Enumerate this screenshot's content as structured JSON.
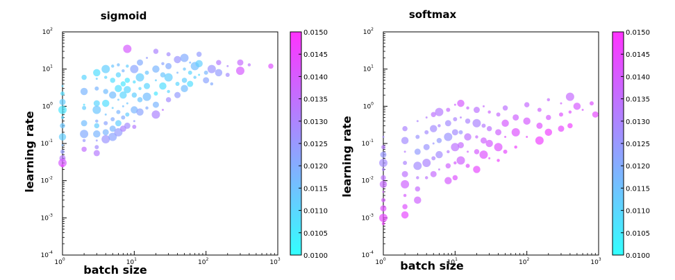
{
  "chart_data": [
    {
      "type": "scatter",
      "title": "sigmoid",
      "xlabel": "batch size",
      "ylabel": "learning rate",
      "xscale": "log",
      "yscale": "log",
      "xlim": [
        1,
        1000
      ],
      "ylim": [
        0.0001,
        100
      ],
      "x_ticks": [
        {
          "base": "10",
          "exp": "0"
        },
        {
          "base": "10",
          "exp": "1"
        },
        {
          "base": "10",
          "exp": "2"
        },
        {
          "base": "10",
          "exp": "3"
        }
      ],
      "y_ticks": [
        {
          "base": "10",
          "exp": "-4"
        },
        {
          "base": "10",
          "exp": "-3"
        },
        {
          "base": "10",
          "exp": "-2"
        },
        {
          "base": "10",
          "exp": "-1"
        },
        {
          "base": "10",
          "exp": "0"
        },
        {
          "base": "10",
          "exp": "1"
        },
        {
          "base": "10",
          "exp": "2"
        }
      ],
      "colorbar": {
        "min": 0.01,
        "max": 0.015,
        "low_color": "#33ffff",
        "high_color": "#ff33ff",
        "ticks": [
          "0.0100",
          "0.0105",
          "0.0110",
          "0.0115",
          "0.0120",
          "0.0125",
          "0.0130",
          "0.0135",
          "0.0140",
          "0.0145",
          "0.0150"
        ]
      },
      "points": [
        [
          1,
          3.5,
          0.011
        ],
        [
          1,
          2.2,
          0.0108
        ],
        [
          1,
          1.3,
          0.0112
        ],
        [
          1,
          0.8,
          0.0106
        ],
        [
          1,
          0.5,
          0.011
        ],
        [
          1,
          0.3,
          0.0114
        ],
        [
          1,
          0.15,
          0.0112
        ],
        [
          1,
          0.09,
          0.0118
        ],
        [
          1,
          0.06,
          0.0124
        ],
        [
          1,
          0.04,
          0.0132
        ],
        [
          1,
          0.03,
          0.014
        ],
        [
          1,
          0.025,
          0.0145
        ],
        [
          2,
          6,
          0.011
        ],
        [
          2,
          2.5,
          0.0118
        ],
        [
          2,
          1.1,
          0.0108
        ],
        [
          2,
          0.9,
          0.0112
        ],
        [
          2,
          0.35,
          0.0116
        ],
        [
          2,
          0.18,
          0.012
        ],
        [
          2,
          0.12,
          0.0125
        ],
        [
          2,
          0.07,
          0.0135
        ],
        [
          3,
          8,
          0.0108
        ],
        [
          3,
          5.5,
          0.0112
        ],
        [
          3,
          3,
          0.0118
        ],
        [
          3,
          1.2,
          0.011
        ],
        [
          3,
          0.8,
          0.0114
        ],
        [
          3,
          0.4,
          0.012
        ],
        [
          3,
          0.3,
          0.0112
        ],
        [
          3,
          0.18,
          0.0118
        ],
        [
          3,
          0.12,
          0.0125
        ],
        [
          3,
          0.08,
          0.0128
        ],
        [
          3,
          0.055,
          0.0132
        ],
        [
          4,
          10,
          0.0112
        ],
        [
          4,
          6,
          0.011
        ],
        [
          4,
          2.5,
          0.0116
        ],
        [
          4,
          1.2,
          0.0108
        ],
        [
          4,
          0.6,
          0.0115
        ],
        [
          4,
          0.35,
          0.0122
        ],
        [
          4,
          0.2,
          0.0118
        ],
        [
          4,
          0.13,
          0.0126
        ],
        [
          5,
          12,
          0.0114
        ],
        [
          5,
          5,
          0.0108
        ],
        [
          5,
          2,
          0.0116
        ],
        [
          5,
          0.9,
          0.0112
        ],
        [
          5,
          0.45,
          0.012
        ],
        [
          5,
          0.25,
          0.0118
        ],
        [
          5,
          0.15,
          0.0122
        ],
        [
          6,
          13,
          0.0116
        ],
        [
          6,
          7,
          0.011
        ],
        [
          6,
          3,
          0.0108
        ],
        [
          6,
          1.5,
          0.0114
        ],
        [
          6,
          0.7,
          0.0118
        ],
        [
          6,
          0.35,
          0.0112
        ],
        [
          6,
          0.2,
          0.0124
        ],
        [
          7,
          9,
          0.0118
        ],
        [
          7,
          4,
          0.0106
        ],
        [
          7,
          2,
          0.011
        ],
        [
          7,
          1,
          0.0116
        ],
        [
          7,
          0.5,
          0.012
        ],
        [
          7,
          0.25,
          0.013
        ],
        [
          8,
          35,
          0.014
        ],
        [
          8,
          12,
          0.0112
        ],
        [
          8,
          5,
          0.0106
        ],
        [
          8,
          2.8,
          0.011
        ],
        [
          8,
          1.2,
          0.0114
        ],
        [
          8,
          0.6,
          0.0112
        ],
        [
          8,
          0.3,
          0.0128
        ],
        [
          10,
          10,
          0.0122
        ],
        [
          10,
          4.5,
          0.0108
        ],
        [
          10,
          2,
          0.0112
        ],
        [
          10,
          0.8,
          0.0118
        ],
        [
          10,
          0.4,
          0.0124
        ],
        [
          10,
          0.28,
          0.0132
        ],
        [
          12,
          15,
          0.012
        ],
        [
          12,
          6,
          0.0112
        ],
        [
          12,
          3,
          0.011
        ],
        [
          12,
          1.5,
          0.0114
        ],
        [
          12,
          0.7,
          0.0122
        ],
        [
          15,
          20,
          0.0124
        ],
        [
          15,
          8,
          0.0114
        ],
        [
          15,
          3.5,
          0.011
        ],
        [
          15,
          1.8,
          0.0116
        ],
        [
          15,
          0.9,
          0.012
        ],
        [
          20,
          30,
          0.013
        ],
        [
          20,
          10,
          0.0118
        ],
        [
          20,
          5,
          0.0112
        ],
        [
          20,
          2.2,
          0.0106
        ],
        [
          20,
          1.1,
          0.0118
        ],
        [
          20,
          0.6,
          0.013
        ],
        [
          25,
          14,
          0.0122
        ],
        [
          25,
          7,
          0.0114
        ],
        [
          25,
          3.5,
          0.0108
        ],
        [
          25,
          0.8,
          0.0134
        ],
        [
          30,
          25,
          0.0128
        ],
        [
          30,
          12,
          0.012
        ],
        [
          30,
          6,
          0.0112
        ],
        [
          30,
          2.5,
          0.011
        ],
        [
          30,
          1.5,
          0.0128
        ],
        [
          40,
          18,
          0.0126
        ],
        [
          40,
          8,
          0.0118
        ],
        [
          40,
          4,
          0.011
        ],
        [
          40,
          2,
          0.0124
        ],
        [
          50,
          20,
          0.012
        ],
        [
          50,
          10,
          0.0114
        ],
        [
          50,
          5,
          0.0112
        ],
        [
          50,
          3,
          0.0116
        ],
        [
          60,
          15,
          0.0118
        ],
        [
          60,
          8,
          0.011
        ],
        [
          60,
          4,
          0.0108
        ],
        [
          70,
          12,
          0.0116
        ],
        [
          70,
          6,
          0.0112
        ],
        [
          80,
          25,
          0.0124
        ],
        [
          80,
          14,
          0.0112
        ],
        [
          80,
          7,
          0.0108
        ],
        [
          100,
          8,
          0.0118
        ],
        [
          100,
          5,
          0.0122
        ],
        [
          120,
          10,
          0.0126
        ],
        [
          120,
          4,
          0.012
        ],
        [
          150,
          15,
          0.0132
        ],
        [
          150,
          8,
          0.0124
        ],
        [
          200,
          12,
          0.013
        ],
        [
          200,
          7,
          0.0128
        ],
        [
          300,
          15,
          0.0136
        ],
        [
          300,
          9,
          0.014
        ],
        [
          400,
          13,
          0.0134
        ],
        [
          800,
          12,
          0.0142
        ]
      ]
    },
    {
      "type": "scatter",
      "title": "softmax",
      "xlabel": "batch size",
      "ylabel": "learning rate",
      "xscale": "log",
      "yscale": "log",
      "xlim": [
        1,
        1000
      ],
      "ylim": [
        0.0001,
        100
      ],
      "x_ticks": [
        {
          "base": "10",
          "exp": "0"
        },
        {
          "base": "10",
          "exp": "1"
        },
        {
          "base": "10",
          "exp": "2"
        },
        {
          "base": "10",
          "exp": "3"
        }
      ],
      "y_ticks": [
        {
          "base": "10",
          "exp": "-4"
        },
        {
          "base": "10",
          "exp": "-3"
        },
        {
          "base": "10",
          "exp": "-2"
        },
        {
          "base": "10",
          "exp": "-1"
        },
        {
          "base": "10",
          "exp": "0"
        },
        {
          "base": "10",
          "exp": "1"
        },
        {
          "base": "10",
          "exp": "2"
        }
      ],
      "colorbar": {
        "min": 0.01,
        "max": 0.015,
        "low_color": "#33ffff",
        "high_color": "#ff33ff",
        "ticks": [
          "0.0100",
          "0.0105",
          "0.0110",
          "0.0115",
          "0.0120",
          "0.0125",
          "0.0130",
          "0.0135",
          "0.0140",
          "0.0145",
          "0.0150"
        ]
      },
      "points": [
        [
          1,
          0.15,
          0.0128
        ],
        [
          1,
          0.08,
          0.0132
        ],
        [
          1,
          0.05,
          0.0125
        ],
        [
          1,
          0.03,
          0.0128
        ],
        [
          1,
          0.02,
          0.013
        ],
        [
          1,
          0.012,
          0.0134
        ],
        [
          1,
          0.008,
          0.0136
        ],
        [
          1,
          0.005,
          0.0138
        ],
        [
          1,
          0.003,
          0.014
        ],
        [
          1,
          0.0018,
          0.0142
        ],
        [
          1,
          0.001,
          0.0144
        ],
        [
          1,
          0.0007,
          0.0146
        ],
        [
          2,
          0.25,
          0.013
        ],
        [
          2,
          0.12,
          0.0128
        ],
        [
          2,
          0.06,
          0.0132
        ],
        [
          2,
          0.03,
          0.013
        ],
        [
          2,
          0.015,
          0.0134
        ],
        [
          2,
          0.008,
          0.0138
        ],
        [
          2,
          0.004,
          0.014
        ],
        [
          2,
          0.002,
          0.0142
        ],
        [
          2,
          0.0012,
          0.0144
        ],
        [
          3,
          0.4,
          0.013
        ],
        [
          3,
          0.15,
          0.0126
        ],
        [
          3,
          0.06,
          0.0124
        ],
        [
          3,
          0.025,
          0.0128
        ],
        [
          3,
          0.012,
          0.0132
        ],
        [
          3,
          0.006,
          0.0136
        ],
        [
          3,
          0.003,
          0.0138
        ],
        [
          4,
          0.5,
          0.0132
        ],
        [
          4,
          0.2,
          0.0128
        ],
        [
          4,
          0.08,
          0.0126
        ],
        [
          4,
          0.03,
          0.013
        ],
        [
          4,
          0.012,
          0.0134
        ],
        [
          5,
          0.6,
          0.0134
        ],
        [
          5,
          0.25,
          0.0128
        ],
        [
          5,
          0.1,
          0.0126
        ],
        [
          5,
          0.04,
          0.013
        ],
        [
          5,
          0.015,
          0.0136
        ],
        [
          6,
          0.7,
          0.0132
        ],
        [
          6,
          0.3,
          0.013
        ],
        [
          6,
          0.12,
          0.0124
        ],
        [
          6,
          0.05,
          0.0128
        ],
        [
          6,
          0.02,
          0.0134
        ],
        [
          8,
          0.8,
          0.0136
        ],
        [
          8,
          0.35,
          0.0128
        ],
        [
          8,
          0.15,
          0.0126
        ],
        [
          8,
          0.06,
          0.0132
        ],
        [
          8,
          0.025,
          0.0138
        ],
        [
          8,
          0.01,
          0.014
        ],
        [
          10,
          1.1,
          0.0138
        ],
        [
          10,
          0.45,
          0.013
        ],
        [
          10,
          0.2,
          0.0128
        ],
        [
          10,
          0.08,
          0.0134
        ],
        [
          10,
          0.03,
          0.014
        ],
        [
          10,
          0.012,
          0.0142
        ],
        [
          12,
          1.2,
          0.014
        ],
        [
          12,
          0.5,
          0.0132
        ],
        [
          12,
          0.2,
          0.0126
        ],
        [
          12,
          0.09,
          0.0136
        ],
        [
          12,
          0.035,
          0.0138
        ],
        [
          15,
          0.9,
          0.0136
        ],
        [
          15,
          0.4,
          0.013
        ],
        [
          15,
          0.15,
          0.0134
        ],
        [
          15,
          0.06,
          0.0138
        ],
        [
          15,
          0.025,
          0.0142
        ],
        [
          20,
          0.8,
          0.0134
        ],
        [
          20,
          0.35,
          0.013
        ],
        [
          20,
          0.15,
          0.0136
        ],
        [
          20,
          0.06,
          0.014
        ],
        [
          20,
          0.02,
          0.0144
        ],
        [
          25,
          1.0,
          0.0136
        ],
        [
          25,
          0.3,
          0.0132
        ],
        [
          25,
          0.12,
          0.0138
        ],
        [
          25,
          0.05,
          0.0142
        ],
        [
          30,
          0.7,
          0.0138
        ],
        [
          30,
          0.25,
          0.0134
        ],
        [
          30,
          0.1,
          0.014
        ],
        [
          30,
          0.04,
          0.0144
        ],
        [
          40,
          0.6,
          0.0136
        ],
        [
          40,
          0.2,
          0.0138
        ],
        [
          40,
          0.08,
          0.0142
        ],
        [
          40,
          0.035,
          0.0146
        ],
        [
          50,
          0.9,
          0.0134
        ],
        [
          50,
          0.35,
          0.014
        ],
        [
          50,
          0.15,
          0.0142
        ],
        [
          50,
          0.06,
          0.0144
        ],
        [
          70,
          0.5,
          0.0138
        ],
        [
          70,
          0.2,
          0.0142
        ],
        [
          70,
          0.08,
          0.0146
        ],
        [
          100,
          1.1,
          0.0136
        ],
        [
          100,
          0.4,
          0.014
        ],
        [
          100,
          0.15,
          0.0144
        ],
        [
          150,
          0.8,
          0.0138
        ],
        [
          150,
          0.3,
          0.0142
        ],
        [
          150,
          0.12,
          0.0146
        ],
        [
          200,
          1.5,
          0.0136
        ],
        [
          200,
          0.5,
          0.014
        ],
        [
          200,
          0.2,
          0.0146
        ],
        [
          300,
          1.2,
          0.0138
        ],
        [
          300,
          0.6,
          0.0142
        ],
        [
          300,
          0.25,
          0.0144
        ],
        [
          400,
          1.8,
          0.0136
        ],
        [
          400,
          0.7,
          0.0142
        ],
        [
          400,
          0.3,
          0.0146
        ],
        [
          500,
          1.0,
          0.014
        ],
        [
          600,
          0.8,
          0.014
        ],
        [
          800,
          1.2,
          0.0142
        ],
        [
          900,
          0.6,
          0.0144
        ]
      ]
    }
  ]
}
